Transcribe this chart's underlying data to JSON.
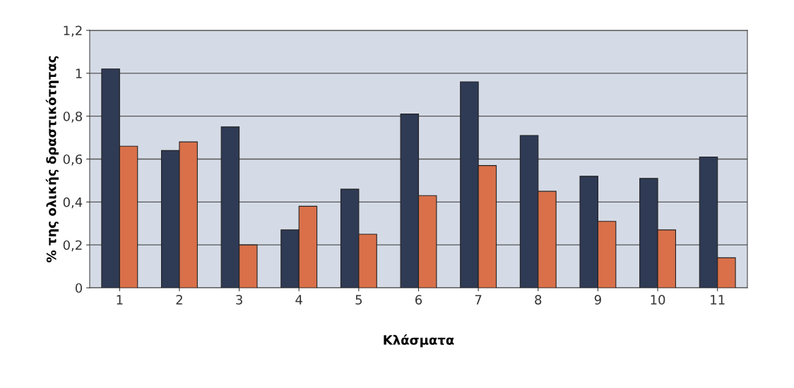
{
  "chart_data": {
    "type": "bar",
    "xlabel": "Κλάσματα",
    "ylabel": "% της ολικής δραστικότητας",
    "categories": [
      "1",
      "2",
      "3",
      "4",
      "5",
      "6",
      "7",
      "8",
      "9",
      "10",
      "11"
    ],
    "series": [
      {
        "color": "#2f3a55",
        "values": [
          1.02,
          0.64,
          0.75,
          0.27,
          0.46,
          0.81,
          0.96,
          0.71,
          0.52,
          0.51,
          0.61
        ]
      },
      {
        "color": "#d9704a",
        "values": [
          0.66,
          0.68,
          0.2,
          0.38,
          0.25,
          0.43,
          0.57,
          0.45,
          0.31,
          0.27,
          0.14
        ]
      }
    ],
    "ylim": [
      0,
      1.2
    ],
    "yticks": [
      0,
      {
        "value": 0.2,
        "label": "0,2"
      },
      {
        "value": 0.4,
        "label": "0,4"
      },
      {
        "value": 0.6,
        "label": "0,6"
      },
      {
        "value": 0.8,
        "label": "0,8"
      },
      1,
      {
        "value": 1.2,
        "label": "1,2"
      }
    ],
    "grid": "y"
  }
}
